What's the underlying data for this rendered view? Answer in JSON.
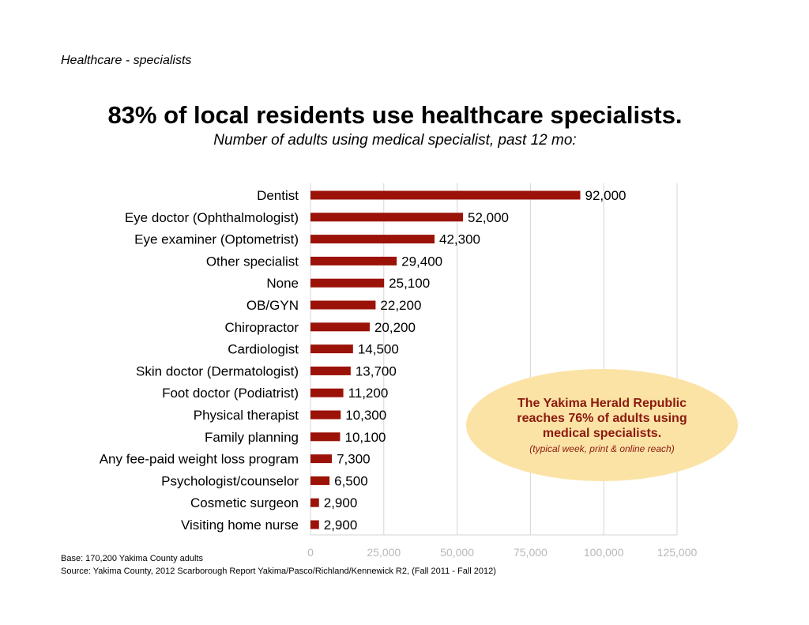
{
  "header": {
    "section_label": "Healthcare - specialists",
    "title": "83% of local residents use healthcare specialists.",
    "subtitle": "Number of adults using medical specialist, past 12 mo:"
  },
  "callout": {
    "main": "The Yakima Herald Republic reaches 76% of adults using medical specialists.",
    "note": "(typical week, print & online reach)",
    "bg_color": "#fbe3a6",
    "text_color": "#8c1a0e"
  },
  "footer": {
    "base": "Base: 170,200 Yakima County adults",
    "source": "Source: Yakima County, 2012 Scarborough Report Yakima/Pasco/Richland/Kennewick R2, (Fall 2011 - Fall 2012)"
  },
  "chart_data": {
    "type": "bar",
    "orientation": "horizontal",
    "categories": [
      "Dentist",
      "Eye doctor (Ophthalmologist)",
      "Eye examiner (Optometrist)",
      "Other specialist",
      "None",
      "OB/GYN",
      "Chiropractor",
      "Cardiologist",
      "Skin doctor (Dermatologist)",
      "Foot doctor (Podiatrist)",
      "Physical therapist",
      "Family planning",
      "Any fee-paid weight loss program",
      "Psychologist/counselor",
      "Cosmetic surgeon",
      "Visiting home nurse"
    ],
    "values": [
      92000,
      52000,
      42300,
      29400,
      25100,
      22200,
      20200,
      14500,
      13700,
      11200,
      10300,
      10100,
      7300,
      6500,
      2900,
      2900
    ],
    "value_labels": [
      "92,000",
      "52,000",
      "42,300",
      "29,400",
      "25,100",
      "22,200",
      "20,200",
      "14,500",
      "13,700",
      "11,200",
      "10,300",
      "10,100",
      "7,300",
      "6,500",
      "2,900",
      "2,900"
    ],
    "xlim": [
      0,
      125000
    ],
    "x_ticks": [
      0,
      25000,
      50000,
      75000,
      100000,
      125000
    ],
    "x_tick_labels": [
      "0",
      "25,000",
      "50,000",
      "75,000",
      "100,000",
      "125,000"
    ],
    "grid": true,
    "bar_color": "#9b1208",
    "grid_color": "#d4d4d4",
    "tick_color": "#b8b8b8"
  }
}
